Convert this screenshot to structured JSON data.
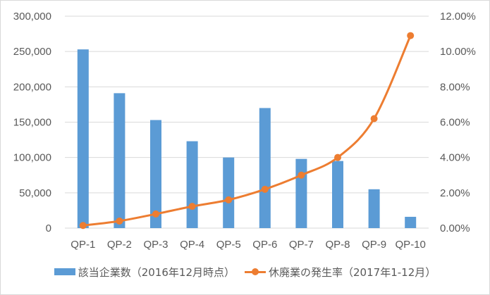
{
  "chart_data": {
    "type": "bar",
    "combo": "bar + line (secondary axis)",
    "title": "",
    "categories": [
      "QP-1",
      "QP-2",
      "QP-3",
      "QP-4",
      "QP-5",
      "QP-6",
      "QP-7",
      "QP-8",
      "QP-9",
      "QP-10"
    ],
    "series": [
      {
        "name": "該当企業数（2016年12月時点）",
        "type": "bar",
        "axis": "left",
        "color": "#5b9bd5",
        "values": [
          253000,
          191000,
          153000,
          123000,
          100000,
          170000,
          98000,
          95000,
          55000,
          16000
        ]
      },
      {
        "name": "休廃業の発生率（2017年1-12月）",
        "type": "line",
        "axis": "right",
        "color": "#ed7d31",
        "marker": "circle",
        "values": [
          0.15,
          0.4,
          0.8,
          1.23,
          1.6,
          2.2,
          3.0,
          4.0,
          6.2,
          10.9
        ],
        "unit": "%"
      }
    ],
    "left_axis": {
      "ylim": [
        0,
        300000
      ],
      "ticks": [
        0,
        50000,
        100000,
        150000,
        200000,
        250000,
        300000
      ],
      "tick_labels": [
        "0",
        "50,000",
        "100,000",
        "150,000",
        "200,000",
        "250,000",
        "300,000"
      ]
    },
    "right_axis": {
      "ylim": [
        0,
        12
      ],
      "ticks": [
        0,
        2,
        4,
        6,
        8,
        10,
        12
      ],
      "tick_labels": [
        "0.00%",
        "2.00%",
        "4.00%",
        "6.00%",
        "8.00%",
        "10.00%",
        "12.00%"
      ]
    },
    "xlabel": "",
    "ylabel": "",
    "grid": true,
    "legend_position": "bottom"
  },
  "legend": {
    "bar_label": "該当企業数（2016年12月時点）",
    "line_label": "休廃業の発生率（2017年1-12月）"
  }
}
